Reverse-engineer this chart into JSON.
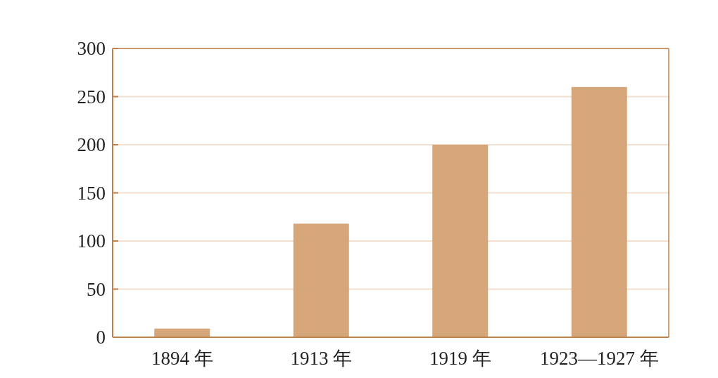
{
  "chart_data": {
    "type": "bar",
    "categories": [
      "1894 年",
      "1913 年",
      "1919 年",
      "1923—1927 年"
    ],
    "values": [
      9,
      118,
      200,
      260
    ],
    "color": "#d4a67a",
    "ylim": [
      0,
      300
    ],
    "yticks": [
      0,
      50,
      100,
      150,
      200,
      250,
      300
    ],
    "grid": "y"
  }
}
